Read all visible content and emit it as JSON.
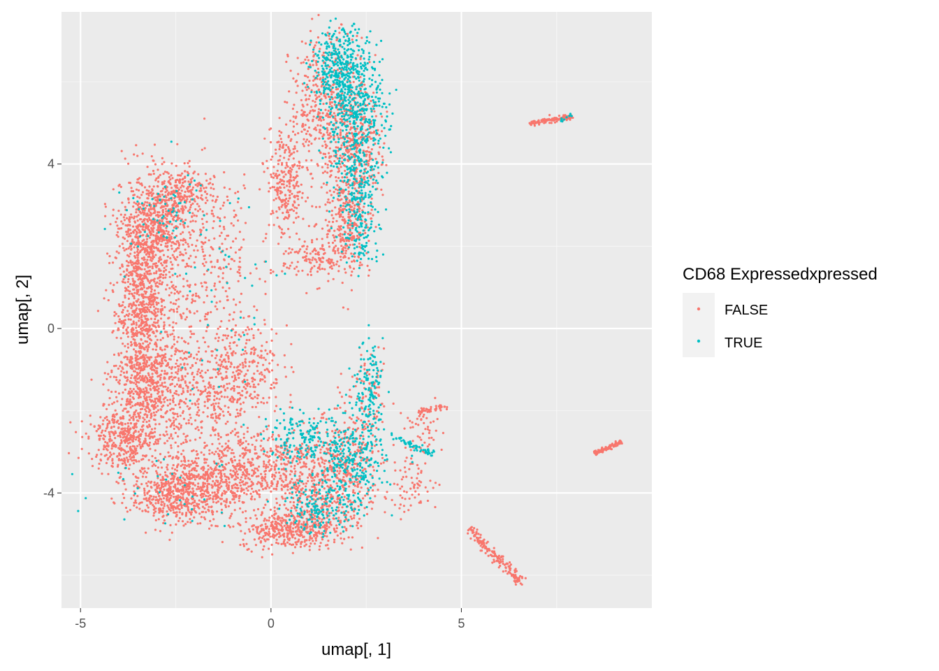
{
  "chart_data": {
    "type": "scatter",
    "title": "",
    "xlabel": "umap[, 1]",
    "ylabel": "umap[, 2]",
    "xlim": [
      -5.5,
      10.0
    ],
    "ylim": [
      -6.8,
      7.7
    ],
    "x_ticks": [
      -5,
      0,
      5
    ],
    "y_ticks": [
      -4,
      0,
      4
    ],
    "x_tick_labels": [
      "-5",
      "0",
      "5"
    ],
    "y_tick_labels": [
      "-4",
      "0",
      "4"
    ],
    "grid": true,
    "panel_background": "#ebebeb",
    "legend": {
      "title": "CD68 Expressedxpressed",
      "position": "right",
      "key_background": "#f2f2f2"
    },
    "series": [
      {
        "name": "FALSE",
        "color": "#f8766d",
        "regions": [
          {
            "cx": -3.4,
            "cy": 0.6,
            "sx": 0.35,
            "sy": 1.3,
            "n": 900
          },
          {
            "cx": -3.0,
            "cy": 2.5,
            "sx": 0.45,
            "sy": 0.6,
            "n": 500
          },
          {
            "cx": -2.3,
            "cy": 3.3,
            "sx": 0.4,
            "sy": 0.3,
            "n": 220
          },
          {
            "cx": -3.9,
            "cy": -2.7,
            "sx": 0.45,
            "sy": 0.35,
            "n": 350
          },
          {
            "cx": -3.2,
            "cy": -1.5,
            "sx": 0.5,
            "sy": 0.7,
            "n": 450
          },
          {
            "cx": -2.5,
            "cy": -4.0,
            "sx": 0.6,
            "sy": 0.35,
            "n": 550
          },
          {
            "cx": -1.2,
            "cy": -3.6,
            "sx": 0.7,
            "sy": 0.5,
            "n": 500
          },
          {
            "cx": 0.4,
            "cy": -4.9,
            "sx": 0.6,
            "sy": 0.22,
            "n": 320
          },
          {
            "cx": 0.3,
            "cy": -3.4,
            "sx": 0.6,
            "sy": 0.45,
            "n": 300
          },
          {
            "cx": -0.7,
            "cy": -0.9,
            "sx": 0.5,
            "sy": 0.6,
            "n": 280
          },
          {
            "cx": -1.6,
            "cy": -1.8,
            "sx": 0.5,
            "sy": 0.6,
            "n": 220
          },
          {
            "cx": -1.5,
            "cy": 1.8,
            "sx": 0.6,
            "sy": 1.0,
            "n": 220
          },
          {
            "cx": 0.4,
            "cy": 3.5,
            "sx": 0.25,
            "sy": 0.7,
            "n": 260
          },
          {
            "cx": 1.1,
            "cy": 1.7,
            "sx": 0.4,
            "sy": 0.3,
            "n": 120
          },
          {
            "cx": 1.5,
            "cy": 5.4,
            "sx": 0.5,
            "sy": 0.9,
            "n": 450
          },
          {
            "cx": 2.2,
            "cy": 4.2,
            "sx": 0.35,
            "sy": 0.8,
            "n": 350
          },
          {
            "cx": 2.0,
            "cy": 2.5,
            "sx": 0.3,
            "sy": 0.6,
            "n": 250
          },
          {
            "cx": 1.9,
            "cy": -3.4,
            "sx": 0.5,
            "sy": 0.7,
            "n": 380
          },
          {
            "cx": 1.2,
            "cy": -4.5,
            "sx": 0.5,
            "sy": 0.4,
            "n": 250
          },
          {
            "cx": 2.6,
            "cy": -1.7,
            "sx": 0.25,
            "sy": 0.5,
            "n": 80
          },
          {
            "cx": 3.7,
            "cy": -3.8,
            "sx": 0.35,
            "sy": 0.35,
            "n": 70
          },
          {
            "cx": 4.0,
            "cy": -2.5,
            "sx": 0.25,
            "sy": 0.35,
            "n": 50
          },
          {
            "cx": -2.7,
            "cy": 0.0,
            "sx": 0.6,
            "sy": 1.8,
            "n": 300
          }
        ],
        "strands": [
          {
            "x0": 5.2,
            "y0": -4.9,
            "x1": 6.6,
            "y1": -6.2,
            "n": 170,
            "noise": 0.06
          },
          {
            "x0": 6.8,
            "y0": 5.0,
            "x1": 7.9,
            "y1": 5.15,
            "n": 110,
            "noise": 0.03
          },
          {
            "x0": 8.5,
            "y0": -3.05,
            "x1": 9.2,
            "y1": -2.75,
            "n": 90,
            "noise": 0.03
          },
          {
            "x0": 3.9,
            "y0": -2.05,
            "x1": 4.6,
            "y1": -1.9,
            "n": 40,
            "noise": 0.04
          }
        ]
      },
      {
        "name": "TRUE",
        "color": "#00bfc4",
        "regions": [
          {
            "cx": 1.9,
            "cy": 6.3,
            "sx": 0.4,
            "sy": 0.5,
            "n": 420
          },
          {
            "cx": 2.2,
            "cy": 5.0,
            "sx": 0.45,
            "sy": 0.6,
            "n": 320
          },
          {
            "cx": 2.3,
            "cy": 3.5,
            "sx": 0.3,
            "sy": 0.6,
            "n": 180
          },
          {
            "cx": 2.4,
            "cy": 2.2,
            "sx": 0.25,
            "sy": 0.4,
            "n": 80
          },
          {
            "cx": 2.6,
            "cy": -1.5,
            "sx": 0.18,
            "sy": 0.6,
            "n": 140
          },
          {
            "cx": 2.1,
            "cy": -3.3,
            "sx": 0.45,
            "sy": 0.6,
            "n": 300
          },
          {
            "cx": 1.3,
            "cy": -4.3,
            "sx": 0.45,
            "sy": 0.35,
            "n": 160
          },
          {
            "cx": 0.8,
            "cy": -2.7,
            "sx": 0.5,
            "sy": 0.3,
            "n": 150
          },
          {
            "cx": -2.8,
            "cy": 2.8,
            "sx": 0.5,
            "sy": 0.4,
            "n": 60
          },
          {
            "cx": -1.5,
            "cy": 1.0,
            "sx": 1.0,
            "sy": 1.5,
            "n": 50
          },
          {
            "cx": -2.5,
            "cy": -3.8,
            "sx": 1.0,
            "sy": 0.5,
            "n": 30
          }
        ],
        "strands": [
          {
            "x0": 3.2,
            "y0": -2.6,
            "x1": 4.3,
            "y1": -3.1,
            "n": 60,
            "noise": 0.05
          },
          {
            "x0": 7.6,
            "y0": 5.05,
            "x1": 7.9,
            "y1": 5.2,
            "n": 12,
            "noise": 0.03
          }
        ]
      }
    ]
  }
}
